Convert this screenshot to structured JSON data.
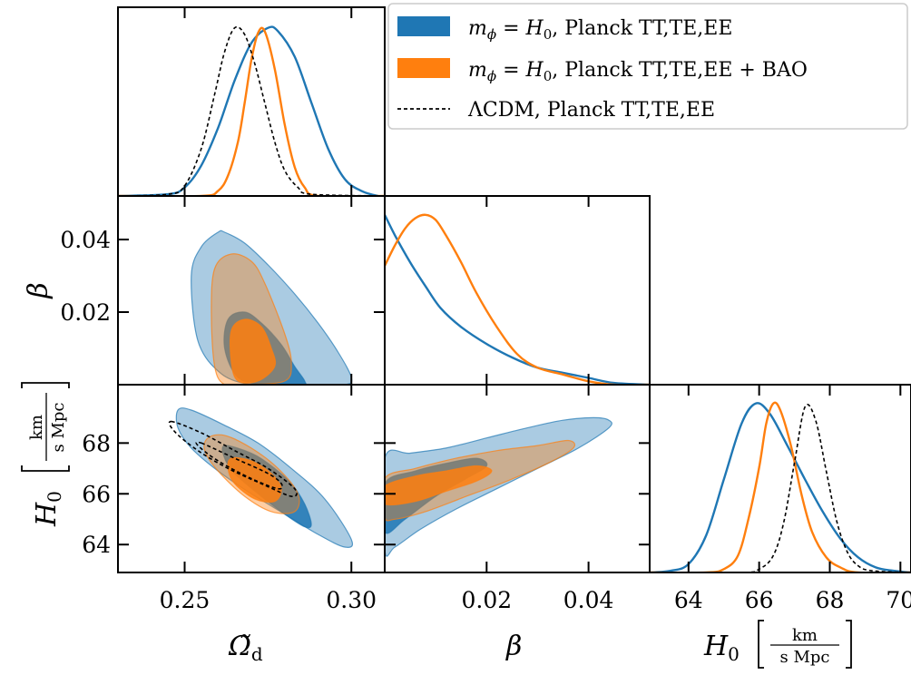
{
  "colors": {
    "blue": "#1f77b4",
    "orange": "#ff7f0e",
    "lcdm": "#000000"
  },
  "legend": {
    "placement": "top-right",
    "entries": [
      {
        "symbol": "m",
        "sub": "ϕ",
        "mid": " = ",
        "h": "H",
        "hsub": "0",
        "rest": ", Planck TT,TE,EE",
        "color": "blue",
        "style": "fill"
      },
      {
        "symbol": "m",
        "sub": "ϕ",
        "mid": " = ",
        "h": "H",
        "hsub": "0",
        "rest": ", Planck TT,TE,EE + BAO",
        "color": "orange",
        "style": "fill"
      },
      {
        "text": "ΛCDM, Planck TT,TE,EE",
        "color": "lcdm",
        "style": "dashed"
      }
    ]
  },
  "axes_labels": {
    "omega": {
      "main": "Ω̃",
      "sub": "d"
    },
    "beta": "β",
    "h0": {
      "main": "H",
      "sub": "0",
      "unit_num": "km",
      "unit_den": "s Mpc"
    }
  },
  "chart_data": {
    "type": "corner",
    "parameters": [
      "Omega_d",
      "beta",
      "H0"
    ],
    "ranges": {
      "Omega_d": [
        0.23,
        0.31
      ],
      "beta": [
        0.0,
        0.052
      ],
      "H0": [
        62.9,
        70.3
      ]
    },
    "ticks": {
      "Omega_d": [
        "0.25",
        "0.30"
      ],
      "beta": [
        "0.02",
        "0.04"
      ],
      "H0_y": [
        "64",
        "66",
        "68"
      ],
      "H0_x": [
        "64",
        "66",
        "68",
        "70"
      ]
    },
    "marginals": {
      "Omega_d": [
        {
          "series": "blue",
          "x": [
            0.23,
            0.245,
            0.25,
            0.255,
            0.26,
            0.265,
            0.27,
            0.275,
            0.278,
            0.283,
            0.288,
            0.293,
            0.298,
            0.303,
            0.308,
            0.31
          ],
          "y": [
            0.0,
            0.01,
            0.05,
            0.18,
            0.4,
            0.68,
            0.9,
            0.99,
            0.97,
            0.82,
            0.55,
            0.28,
            0.1,
            0.03,
            0.0,
            0.0
          ]
        },
        {
          "series": "orange",
          "x": [
            0.23,
            0.255,
            0.26,
            0.263,
            0.266,
            0.268,
            0.27,
            0.272,
            0.274,
            0.277,
            0.28,
            0.283,
            0.286,
            0.29,
            0.31
          ],
          "y": [
            0.0,
            0.0,
            0.03,
            0.12,
            0.32,
            0.55,
            0.8,
            0.96,
            0.97,
            0.75,
            0.42,
            0.17,
            0.05,
            0.0,
            0.0
          ]
        },
        {
          "series": "lcdm",
          "x": [
            0.23,
            0.245,
            0.25,
            0.255,
            0.259,
            0.262,
            0.265,
            0.268,
            0.271,
            0.274,
            0.277,
            0.28,
            0.284,
            0.288,
            0.31
          ],
          "y": [
            0.0,
            0.01,
            0.06,
            0.28,
            0.6,
            0.85,
            0.99,
            0.95,
            0.78,
            0.55,
            0.32,
            0.15,
            0.05,
            0.01,
            0.0
          ]
        }
      ],
      "beta": [
        {
          "series": "blue",
          "x": [
            0.0,
            0.002,
            0.005,
            0.008,
            0.011,
            0.015,
            0.02,
            0.025,
            0.03,
            0.035,
            0.04,
            0.045,
            0.052
          ],
          "y": [
            1.0,
            0.88,
            0.72,
            0.58,
            0.45,
            0.34,
            0.24,
            0.16,
            0.1,
            0.07,
            0.04,
            0.01,
            0.0
          ]
        },
        {
          "series": "orange",
          "x": [
            0.0,
            0.002,
            0.004,
            0.006,
            0.008,
            0.01,
            0.012,
            0.015,
            0.018,
            0.022,
            0.026,
            0.03,
            0.035,
            0.04,
            0.045,
            0.052
          ],
          "y": [
            0.7,
            0.82,
            0.92,
            0.98,
            1.0,
            0.97,
            0.88,
            0.72,
            0.54,
            0.34,
            0.18,
            0.1,
            0.06,
            0.02,
            0.0,
            0.0
          ]
        }
      ],
      "H0": [
        {
          "series": "blue",
          "x": [
            62.9,
            63.5,
            64.0,
            64.5,
            65.0,
            65.5,
            65.9,
            66.3,
            66.8,
            67.3,
            67.8,
            68.3,
            68.8,
            69.3,
            69.8,
            70.3
          ],
          "y": [
            0.0,
            0.01,
            0.05,
            0.22,
            0.55,
            0.88,
            1.0,
            0.94,
            0.75,
            0.55,
            0.36,
            0.2,
            0.09,
            0.03,
            0.01,
            0.0
          ]
        },
        {
          "series": "orange",
          "x": [
            62.9,
            64.5,
            65.0,
            65.4,
            65.7,
            66.0,
            66.2,
            66.4,
            66.6,
            66.9,
            67.2,
            67.5,
            67.9,
            68.3,
            68.8,
            70.3
          ],
          "y": [
            0.0,
            0.0,
            0.02,
            0.1,
            0.32,
            0.62,
            0.88,
            1.0,
            0.96,
            0.75,
            0.46,
            0.24,
            0.09,
            0.03,
            0.0,
            0.0
          ]
        },
        {
          "series": "lcdm",
          "x": [
            62.9,
            65.5,
            66.0,
            66.4,
            66.7,
            67.0,
            67.3,
            67.6,
            67.9,
            68.2,
            68.5,
            68.8,
            69.2,
            70.3
          ],
          "y": [
            0.0,
            0.0,
            0.02,
            0.1,
            0.3,
            0.65,
            0.98,
            0.9,
            0.6,
            0.3,
            0.12,
            0.04,
            0.01,
            0.0
          ]
        }
      ]
    },
    "contours": {
      "Omega_d_beta": [
        {
          "series": "blue",
          "level": "95",
          "x": [
            0.255,
            0.26,
            0.262,
            0.268,
            0.275,
            0.283,
            0.29,
            0.296,
            0.3,
            0.298,
            0.287,
            0.278,
            0.27,
            0.261,
            0.254,
            0.252
          ],
          "y": [
            0.038,
            0.042,
            0.042,
            0.039,
            0.033,
            0.025,
            0.017,
            0.009,
            0.002,
            0.0,
            0.0,
            0.0,
            0.0,
            0.003,
            0.012,
            0.03
          ]
        },
        {
          "series": "blue",
          "level": "68",
          "x": [
            0.263,
            0.268,
            0.273,
            0.279,
            0.283,
            0.286,
            0.285,
            0.274,
            0.266,
            0.262
          ],
          "y": [
            0.018,
            0.02,
            0.017,
            0.011,
            0.005,
            0.001,
            0.0,
            0.0,
            0.002,
            0.01
          ]
        },
        {
          "series": "orange",
          "level": "95",
          "x": [
            0.259,
            0.264,
            0.27,
            0.274,
            0.28,
            0.282,
            0.28,
            0.268,
            0.262,
            0.259,
            0.258
          ],
          "y": [
            0.032,
            0.036,
            0.034,
            0.028,
            0.014,
            0.006,
            0.001,
            0.0,
            0.0,
            0.005,
            0.02
          ]
        },
        {
          "series": "orange",
          "level": "68",
          "x": [
            0.264,
            0.268,
            0.273,
            0.276,
            0.277,
            0.272,
            0.266,
            0.264
          ],
          "y": [
            0.015,
            0.018,
            0.016,
            0.01,
            0.005,
            0.001,
            0.001,
            0.006
          ]
        }
      ],
      "Omega_d_H0": [
        {
          "series": "blue",
          "level": "95",
          "x": [
            0.248,
            0.252,
            0.262,
            0.272,
            0.282,
            0.292,
            0.3,
            0.298,
            0.29,
            0.28,
            0.27,
            0.26,
            0.252,
            0.248
          ],
          "y": [
            69.3,
            69.3,
            68.7,
            68.0,
            67.0,
            65.8,
            64.2,
            63.9,
            64.4,
            65.2,
            66.0,
            66.9,
            67.8,
            68.6
          ]
        },
        {
          "series": "blue",
          "level": "68",
          "x": [
            0.262,
            0.27,
            0.276,
            0.282,
            0.286,
            0.288,
            0.286,
            0.28,
            0.273,
            0.265,
            0.262
          ],
          "y": [
            67.9,
            67.6,
            67.1,
            66.4,
            65.6,
            64.8,
            64.7,
            65.2,
            65.9,
            66.8,
            67.4
          ]
        },
        {
          "series": "orange",
          "level": "95",
          "x": [
            0.257,
            0.262,
            0.27,
            0.278,
            0.284,
            0.283,
            0.276,
            0.268,
            0.26,
            0.256
          ],
          "y": [
            68.2,
            68.3,
            67.8,
            67.0,
            66.0,
            65.3,
            65.3,
            65.9,
            66.9,
            67.7
          ]
        },
        {
          "series": "orange",
          "level": "68",
          "x": [
            0.264,
            0.27,
            0.276,
            0.279,
            0.277,
            0.271,
            0.265,
            0.263
          ],
          "y": [
            67.4,
            67.3,
            66.8,
            66.2,
            65.7,
            65.8,
            66.4,
            67.0
          ]
        },
        {
          "series": "lcdm",
          "level": "95",
          "x": [
            0.246,
            0.255,
            0.265,
            0.275,
            0.283,
            0.282,
            0.273,
            0.263,
            0.254,
            0.247
          ],
          "y": [
            68.85,
            68.4,
            67.7,
            67.0,
            66.2,
            65.9,
            66.4,
            67.0,
            67.7,
            68.45
          ]
        },
        {
          "series": "lcdm",
          "level": "68",
          "x": [
            0.255,
            0.265,
            0.275,
            0.279,
            0.278,
            0.27,
            0.26,
            0.254
          ],
          "y": [
            68.0,
            67.4,
            66.8,
            66.4,
            66.2,
            66.6,
            67.3,
            67.9
          ]
        }
      ],
      "beta_H0": [
        {
          "series": "blue",
          "level": "95",
          "x": [
            0.0,
            0.005,
            0.012,
            0.02,
            0.028,
            0.035,
            0.041,
            0.044,
            0.044,
            0.038,
            0.03,
            0.022,
            0.014,
            0.007,
            0.002,
            0.0
          ],
          "y": [
            67.4,
            67.6,
            67.8,
            68.2,
            68.6,
            68.9,
            69.0,
            68.9,
            68.6,
            67.8,
            67.0,
            66.2,
            65.4,
            64.6,
            63.9,
            63.8
          ]
        },
        {
          "series": "blue",
          "level": "68",
          "x": [
            0.0,
            0.006,
            0.012,
            0.018,
            0.02,
            0.016,
            0.01,
            0.004,
            0.0
          ],
          "y": [
            66.4,
            66.9,
            67.2,
            67.4,
            67.1,
            66.6,
            65.9,
            65.0,
            64.5
          ]
        },
        {
          "series": "orange",
          "level": "95",
          "x": [
            0.0,
            0.006,
            0.014,
            0.022,
            0.03,
            0.036,
            0.037,
            0.032,
            0.024,
            0.016,
            0.008,
            0.002,
            0.0
          ],
          "y": [
            66.6,
            67.0,
            67.4,
            67.7,
            67.9,
            68.1,
            67.8,
            67.2,
            66.5,
            65.9,
            65.3,
            65.0,
            65.1
          ]
        },
        {
          "series": "orange",
          "level": "68",
          "x": [
            0.0,
            0.006,
            0.012,
            0.018,
            0.021,
            0.018,
            0.012,
            0.006,
            0.0
          ],
          "y": [
            66.3,
            66.7,
            66.9,
            67.1,
            66.9,
            66.5,
            66.1,
            65.7,
            65.6
          ]
        }
      ]
    }
  }
}
